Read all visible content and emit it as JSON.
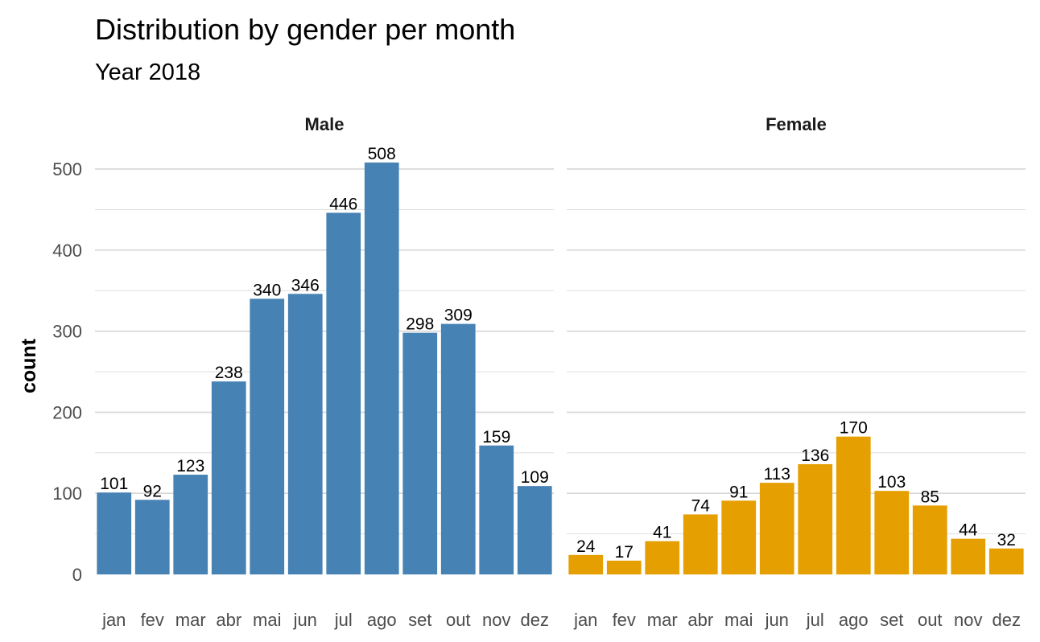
{
  "chart_data": {
    "type": "bar",
    "title": "Distribution by gender per month",
    "subtitle": "Year 2018",
    "xlabel": "",
    "ylabel": "count",
    "ylim": [
      0,
      520
    ],
    "yticks": [
      0,
      100,
      200,
      300,
      400,
      500
    ],
    "grid": true,
    "legend": "none",
    "categories": [
      "jan",
      "fev",
      "mar",
      "abr",
      "mai",
      "jun",
      "jul",
      "ago",
      "set",
      "out",
      "nov",
      "dez"
    ],
    "series": [
      {
        "name": "Male",
        "color": "#4682b4",
        "values": [
          101,
          92,
          123,
          238,
          340,
          346,
          446,
          508,
          298,
          309,
          159,
          109
        ]
      },
      {
        "name": "Female",
        "color": "#e69f00",
        "values": [
          24,
          17,
          41,
          74,
          91,
          113,
          136,
          170,
          103,
          85,
          44,
          32
        ]
      }
    ]
  }
}
